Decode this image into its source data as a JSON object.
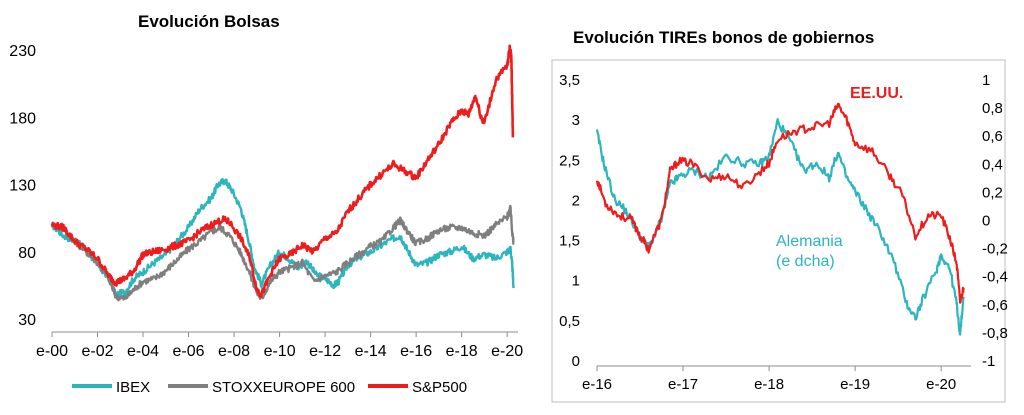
{
  "colors": {
    "ibex": "#2bb5bd",
    "stoxx": "#7f7f7f",
    "sp500": "#ee1c1c",
    "us": "#ee1c1c",
    "de": "#2bb5bd",
    "axis": "#8c8c8c"
  },
  "chart_data": [
    {
      "type": "line",
      "title": "Evolución Bolsas",
      "xlabel": "",
      "ylabel": "",
      "ylim": [
        30,
        230
      ],
      "y_ticks": [
        30,
        80,
        130,
        180,
        230
      ],
      "y_tick_labels": [
        "30",
        "80",
        "130",
        "180",
        "230"
      ],
      "x_ticks": [
        2000,
        2002,
        2004,
        2006,
        2008,
        2010,
        2012,
        2014,
        2016,
        2018,
        2020
      ],
      "x_tick_labels": [
        "e-00",
        "e-02",
        "e-04",
        "e-06",
        "e-08",
        "e-10",
        "e-12",
        "e-14",
        "e-16",
        "e-18",
        "e-20"
      ],
      "xlim": [
        2000,
        2020.3
      ],
      "legend_position": "bottom",
      "series": [
        {
          "name": "IBEX",
          "color": "#2bb5bd",
          "x": [
            2000,
            2000.5,
            2001,
            2001.5,
            2002,
            2002.5,
            2002.8,
            2003.2,
            2003.6,
            2004,
            2004.5,
            2005,
            2005.5,
            2006,
            2006.5,
            2007,
            2007.3,
            2007.6,
            2007.9,
            2008.3,
            2008.6,
            2008.9,
            2009.2,
            2009.6,
            2010,
            2010.4,
            2010.8,
            2011.2,
            2011.6,
            2012,
            2012.4,
            2012.6,
            2013,
            2013.5,
            2014,
            2014.5,
            2015,
            2015.3,
            2015.6,
            2016,
            2016.5,
            2017,
            2017.5,
            2018,
            2018.5,
            2019,
            2019.5,
            2020,
            2020.15,
            2020.22,
            2020.28
          ],
          "values": [
            100,
            92,
            88,
            82,
            70,
            60,
            48,
            50,
            60,
            65,
            72,
            78,
            88,
            98,
            112,
            120,
            130,
            133,
            126,
            112,
            92,
            68,
            56,
            70,
            80,
            75,
            68,
            73,
            63,
            60,
            55,
            58,
            70,
            76,
            80,
            85,
            90,
            92,
            82,
            70,
            72,
            78,
            80,
            84,
            75,
            78,
            75,
            80,
            82,
            70,
            53
          ]
        },
        {
          "name": "STOXXEUROPE 600",
          "color": "#7f7f7f",
          "x": [
            2000,
            2000.5,
            2001,
            2001.5,
            2002,
            2002.5,
            2002.8,
            2003.2,
            2003.6,
            2004,
            2004.5,
            2005,
            2005.5,
            2006,
            2006.5,
            2007,
            2007.4,
            2007.8,
            2008.2,
            2008.6,
            2009,
            2009.2,
            2009.6,
            2010,
            2010.5,
            2011,
            2011.5,
            2012,
            2012.5,
            2013,
            2013.5,
            2014,
            2014.5,
            2015,
            2015.3,
            2015.6,
            2016,
            2016.5,
            2017,
            2017.5,
            2018,
            2018.5,
            2019,
            2019.5,
            2020,
            2020.15,
            2020.22,
            2020.28
          ],
          "values": [
            100,
            98,
            88,
            80,
            72,
            60,
            47,
            45,
            52,
            58,
            60,
            66,
            74,
            82,
            88,
            95,
            98,
            92,
            82,
            68,
            50,
            45,
            58,
            65,
            68,
            72,
            58,
            62,
            65,
            72,
            78,
            84,
            88,
            98,
            103,
            96,
            86,
            90,
            96,
            98,
            98,
            94,
            92,
            100,
            106,
            112,
            95,
            86
          ]
        },
        {
          "name": "S&P500",
          "color": "#ee1c1c",
          "x": [
            2000,
            2000.5,
            2001,
            2001.5,
            2002,
            2002.5,
            2002.8,
            2003.2,
            2003.6,
            2004,
            2004.5,
            2005,
            2005.5,
            2006,
            2006.5,
            2007,
            2007.5,
            2007.8,
            2008.3,
            2008.7,
            2009,
            2009.2,
            2009.6,
            2010,
            2010.5,
            2011,
            2011.5,
            2012,
            2012.5,
            2013,
            2013.5,
            2014,
            2014.5,
            2015,
            2015.5,
            2016,
            2016.5,
            2017,
            2017.5,
            2018,
            2018.3,
            2018.6,
            2018.9,
            2019,
            2019.5,
            2020,
            2020.12,
            2020.18,
            2020.22,
            2020.25
          ],
          "values": [
            100,
            98,
            88,
            82,
            75,
            62,
            57,
            60,
            66,
            78,
            80,
            82,
            85,
            88,
            95,
            100,
            104,
            102,
            90,
            75,
            52,
            48,
            63,
            75,
            78,
            85,
            80,
            90,
            94,
            110,
            120,
            130,
            138,
            145,
            140,
            135,
            148,
            160,
            175,
            185,
            182,
            196,
            178,
            176,
            208,
            218,
            232,
            225,
            195,
            165
          ]
        }
      ]
    },
    {
      "type": "line",
      "title": "Evolución TIREs bonos de gobiernos",
      "xlabel": "",
      "ylabel": "",
      "ylim": [
        0,
        3.5
      ],
      "y_ticks": [
        0,
        0.5,
        1,
        1.5,
        2,
        2.5,
        3,
        3.5
      ],
      "y_tick_labels": [
        "0",
        "0,5",
        "1",
        "1,5",
        "2",
        "2,5",
        "3",
        "3,5"
      ],
      "y2lim": [
        -1,
        1
      ],
      "y2_ticks": [
        -1,
        -0.8,
        -0.6,
        -0.4,
        -0.2,
        0,
        0.2,
        0.4,
        0.6,
        0.8,
        1
      ],
      "y2_tick_labels": [
        "-1",
        "-0,8",
        "-0,6",
        "-0,4",
        "-0,2",
        "0",
        "0,2",
        "0,4",
        "0,6",
        "0,8",
        "1"
      ],
      "x_ticks": [
        2016,
        2017,
        2018,
        2019,
        2020
      ],
      "x_tick_labels": [
        "e-16",
        "e-17",
        "e-18",
        "e-19",
        "e-20"
      ],
      "xlim": [
        2016,
        2020.3
      ],
      "series": [
        {
          "name": "EE.UU.",
          "axis": "left",
          "color": "#ee1c1c",
          "x": [
            2016,
            2016.1,
            2016.25,
            2016.4,
            2016.5,
            2016.6,
            2016.75,
            2016.85,
            2016.95,
            2017.1,
            2017.3,
            2017.5,
            2017.7,
            2017.9,
            2018,
            2018.1,
            2018.3,
            2018.5,
            2018.7,
            2018.8,
            2018.9,
            2019,
            2019.2,
            2019.4,
            2019.55,
            2019.7,
            2019.85,
            2020,
            2020.1,
            2020.18,
            2020.22,
            2020.26
          ],
          "values": [
            2.25,
            1.95,
            1.8,
            1.75,
            1.55,
            1.38,
            1.75,
            2.35,
            2.48,
            2.45,
            2.25,
            2.3,
            2.15,
            2.35,
            2.45,
            2.75,
            2.85,
            2.9,
            2.95,
            3.18,
            3.0,
            2.7,
            2.6,
            2.3,
            2.05,
            1.55,
            1.8,
            1.8,
            1.52,
            1.2,
            0.72,
            0.9
          ]
        },
        {
          "name": "Alemania",
          "axis": "right",
          "color": "#2bb5bd",
          "x": [
            2016,
            2016.08,
            2016.2,
            2016.35,
            2016.5,
            2016.6,
            2016.75,
            2016.85,
            2016.95,
            2017.1,
            2017.3,
            2017.5,
            2017.7,
            2017.9,
            2018,
            2018.1,
            2018.25,
            2018.4,
            2018.55,
            2018.7,
            2018.8,
            2018.9,
            2019,
            2019.15,
            2019.3,
            2019.45,
            2019.6,
            2019.7,
            2019.8,
            2019.95,
            2020,
            2020.1,
            2020.18,
            2020.22,
            2020.26
          ],
          "values": [
            0.62,
            0.4,
            0.15,
            0.05,
            -0.12,
            -0.2,
            0.0,
            0.25,
            0.3,
            0.35,
            0.3,
            0.45,
            0.4,
            0.4,
            0.45,
            0.7,
            0.55,
            0.35,
            0.4,
            0.3,
            0.48,
            0.3,
            0.2,
            0.05,
            -0.1,
            -0.3,
            -0.6,
            -0.7,
            -0.55,
            -0.35,
            -0.25,
            -0.35,
            -0.6,
            -0.82,
            -0.55
          ]
        }
      ],
      "annotations": {
        "us": "EE.UU.",
        "de_line1": "Alemania",
        "de_line2": "(e dcha)"
      }
    }
  ]
}
